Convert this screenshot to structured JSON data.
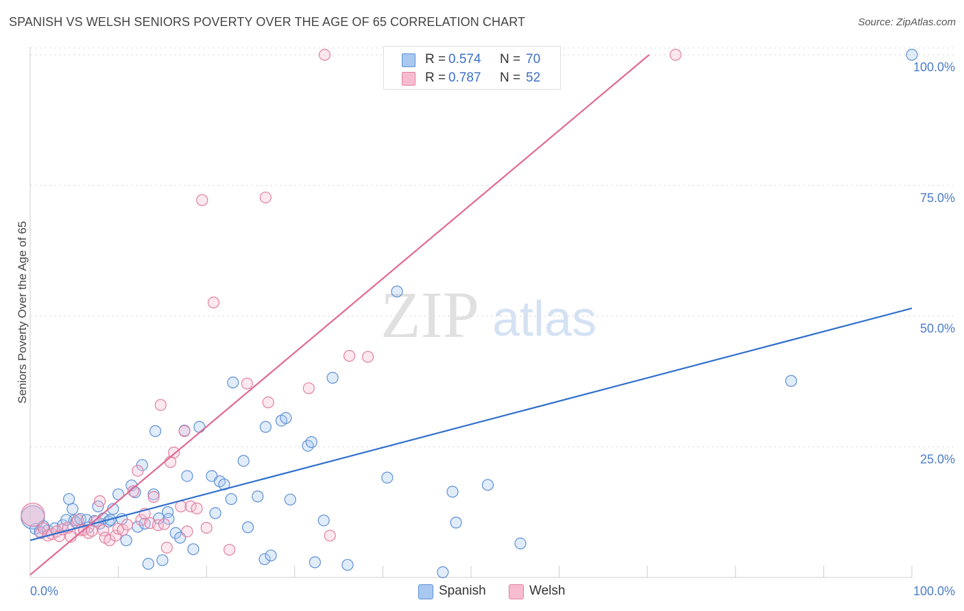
{
  "title": "SPANISH VS WELSH SENIORS POVERTY OVER THE AGE OF 65 CORRELATION CHART",
  "source": "Source: ZipAtlas.com",
  "watermark": {
    "zip": "ZIP",
    "atlas": "atlas"
  },
  "legend": {
    "r_label": "R =",
    "n_label": "N =",
    "items": [
      {
        "name": "Spanish",
        "r": "0.574",
        "n": "70",
        "fill": "#a9c8f0",
        "stroke": "#5b8fd6"
      },
      {
        "name": "Welsh",
        "r": "0.787",
        "n": "52",
        "fill": "#f7bcd0",
        "stroke": "#e07fa0"
      }
    ]
  },
  "colors": {
    "spanish_line": "#2f6fce",
    "welsh_line": "#e06890",
    "tick": "#4a7cc7",
    "grid": "#dddddd"
  },
  "chart_data": {
    "type": "scatter",
    "ylabel": "Seniors Poverty Over the Age of 65",
    "xlim": [
      0,
      100
    ],
    "ylim": [
      0,
      100
    ],
    "x_ticks": [
      "0.0%",
      "100.0%"
    ],
    "y_ticks": [
      {
        "value": 100,
        "label": "100.0%"
      },
      {
        "value": 75,
        "label": "75.0%"
      },
      {
        "value": 50,
        "label": "50.0%"
      },
      {
        "value": 25,
        "label": "25.0%"
      }
    ],
    "grid": true,
    "legend_position": "top-center",
    "series": [
      {
        "name": "Spanish",
        "trend": [
          [
            0,
            7.1
          ],
          [
            100,
            51.5
          ]
        ],
        "points": [
          [
            0.3,
            11.5,
            "big"
          ],
          [
            0.6,
            9.3
          ],
          [
            1.1,
            8.8
          ],
          [
            1.5,
            9.8
          ],
          [
            2.0,
            9.0
          ],
          [
            2.8,
            9.4
          ],
          [
            3.7,
            10.0
          ],
          [
            4.1,
            11.0
          ],
          [
            4.4,
            15.0
          ],
          [
            4.8,
            13.1
          ],
          [
            5.0,
            10.9
          ],
          [
            5.2,
            10.5
          ],
          [
            5.7,
            11.2
          ],
          [
            6.4,
            11.0
          ],
          [
            6.6,
            9.6
          ],
          [
            7.3,
            10.8
          ],
          [
            7.7,
            13.6
          ],
          [
            7.9,
            10.3
          ],
          [
            8.3,
            11.3
          ],
          [
            8.9,
            10.7
          ],
          [
            9.1,
            11.0
          ],
          [
            9.4,
            13.1
          ],
          [
            10.0,
            15.9
          ],
          [
            10.4,
            11.2
          ],
          [
            10.9,
            7.1
          ],
          [
            11.5,
            17.6
          ],
          [
            11.9,
            16.3
          ],
          [
            12.2,
            9.7
          ],
          [
            12.7,
            21.5
          ],
          [
            13.0,
            10.3
          ],
          [
            13.4,
            2.6
          ],
          [
            14.0,
            15.9
          ],
          [
            14.2,
            28.0
          ],
          [
            14.6,
            11.3
          ],
          [
            15.0,
            3.3
          ],
          [
            15.6,
            12.5
          ],
          [
            15.7,
            11.2
          ],
          [
            16.5,
            8.5
          ],
          [
            17.0,
            7.6
          ],
          [
            17.5,
            28.1
          ],
          [
            17.8,
            19.4
          ],
          [
            18.5,
            5.4
          ],
          [
            19.2,
            28.8
          ],
          [
            20.6,
            19.4
          ],
          [
            21.0,
            12.3
          ],
          [
            21.5,
            18.4
          ],
          [
            22.0,
            17.8
          ],
          [
            22.8,
            15.0
          ],
          [
            23.0,
            37.3
          ],
          [
            24.2,
            22.3
          ],
          [
            24.7,
            9.6
          ],
          [
            25.8,
            15.5
          ],
          [
            26.6,
            3.5
          ],
          [
            26.7,
            28.8
          ],
          [
            27.3,
            4.2
          ],
          [
            28.5,
            30.0
          ],
          [
            29.0,
            30.5
          ],
          [
            29.5,
            14.9
          ],
          [
            31.5,
            25.2
          ],
          [
            31.9,
            25.9
          ],
          [
            32.3,
            2.9
          ],
          [
            33.3,
            10.9
          ],
          [
            34.3,
            38.2
          ],
          [
            36.0,
            2.4
          ],
          [
            40.5,
            19.1
          ],
          [
            41.6,
            54.7
          ],
          [
            46.8,
            1.0
          ],
          [
            47.9,
            16.4
          ],
          [
            48.3,
            10.5
          ],
          [
            51.9,
            17.7
          ],
          [
            55.6,
            6.5
          ],
          [
            86.3,
            37.6
          ],
          [
            100,
            100
          ]
        ]
      },
      {
        "name": "Welsh",
        "trend": [
          [
            0,
            0.5
          ],
          [
            70.2,
            100
          ]
        ],
        "points": [
          [
            0.3,
            12.0,
            "big"
          ],
          [
            1.2,
            8.5
          ],
          [
            1.5,
            9.4
          ],
          [
            2.0,
            8.0
          ],
          [
            2.5,
            8.3
          ],
          [
            3.0,
            8.8
          ],
          [
            3.3,
            7.9
          ],
          [
            3.7,
            9.2
          ],
          [
            4.3,
            9.5
          ],
          [
            4.6,
            7.8
          ],
          [
            5.4,
            11.0
          ],
          [
            5.7,
            9.0
          ],
          [
            6.1,
            9.1
          ],
          [
            6.6,
            8.5
          ],
          [
            7.0,
            8.9
          ],
          [
            7.5,
            10.7
          ],
          [
            7.9,
            14.6
          ],
          [
            8.3,
            9.0
          ],
          [
            8.5,
            7.6
          ],
          [
            9.0,
            7.1
          ],
          [
            9.7,
            8.0
          ],
          [
            10.0,
            9.3
          ],
          [
            10.5,
            9.1
          ],
          [
            11.0,
            10.1
          ],
          [
            11.7,
            16.5
          ],
          [
            12.2,
            20.4
          ],
          [
            12.6,
            11.0
          ],
          [
            13.0,
            12.2
          ],
          [
            13.6,
            10.4
          ],
          [
            14.0,
            15.4
          ],
          [
            14.5,
            10.0
          ],
          [
            14.8,
            33.0
          ],
          [
            15.2,
            10.2
          ],
          [
            15.5,
            5.7
          ],
          [
            15.9,
            22.1
          ],
          [
            16.3,
            23.9
          ],
          [
            17.1,
            13.6
          ],
          [
            17.5,
            28.0
          ],
          [
            17.8,
            8.8
          ],
          [
            18.2,
            13.6
          ],
          [
            18.9,
            13.2
          ],
          [
            19.5,
            72.2
          ],
          [
            20.0,
            9.5
          ],
          [
            20.8,
            52.6
          ],
          [
            22.6,
            5.3
          ],
          [
            24.6,
            37.1
          ],
          [
            26.7,
            72.7
          ],
          [
            27.0,
            33.5
          ],
          [
            31.6,
            36.2
          ],
          [
            33.4,
            100
          ],
          [
            34.0,
            8.0
          ],
          [
            36.2,
            42.4
          ],
          [
            38.3,
            42.2
          ],
          [
            73.2,
            100
          ]
        ]
      }
    ]
  }
}
